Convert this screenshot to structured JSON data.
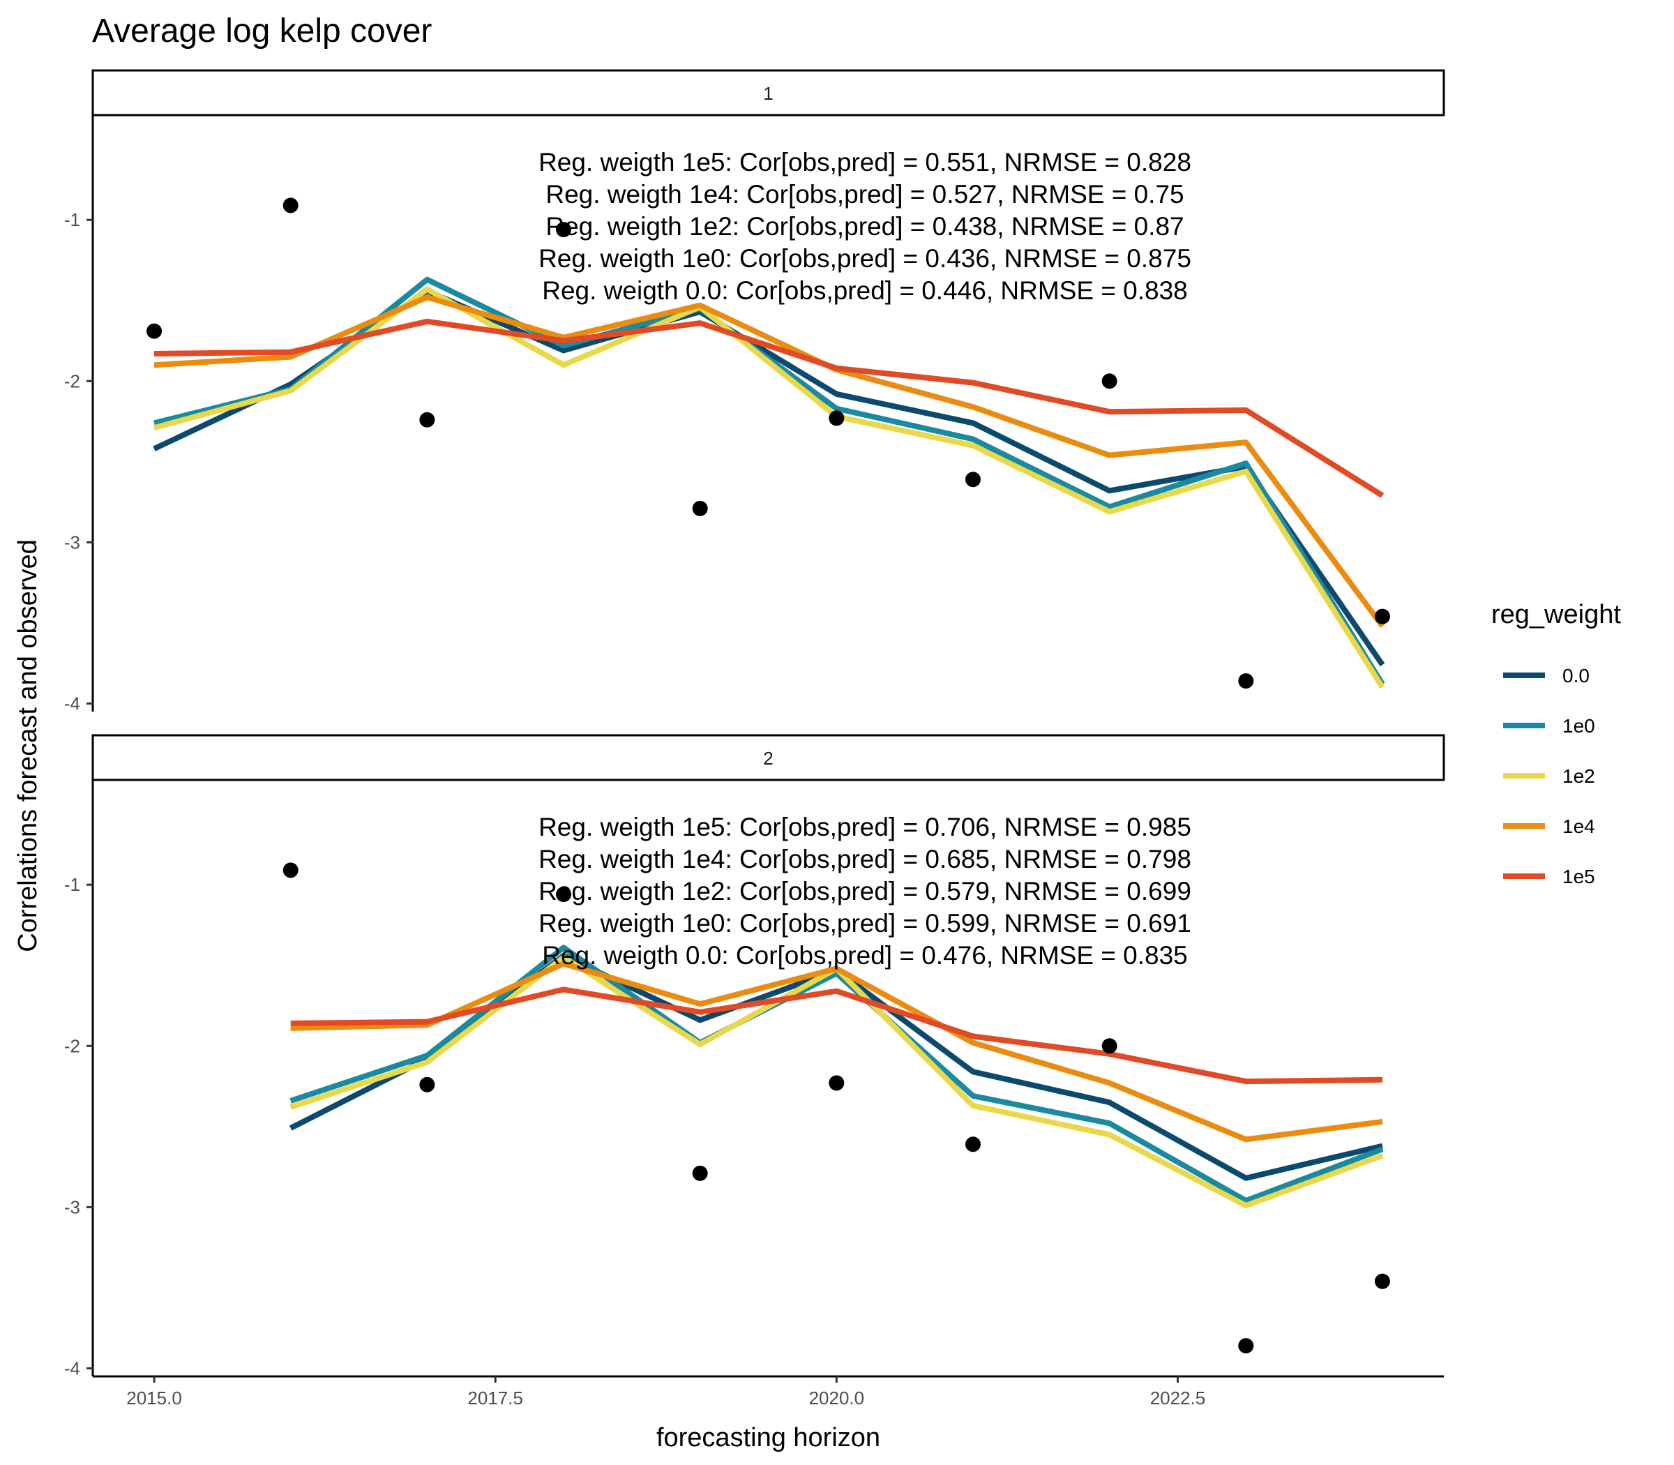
{
  "title": "Average log kelp cover",
  "xlabel": "forecasting horizon",
  "ylabel": "Correlations forecast and observed",
  "legend": {
    "title": "reg_weight",
    "entries": [
      "0.0",
      "1e0",
      "1e2",
      "1e4",
      "1e5"
    ]
  },
  "colors": {
    "0.0": "#0b4a6e",
    "1e0": "#1a8aa1",
    "1e2": "#e9d84b",
    "1e4": "#e98c0f",
    "1e5": "#e04a25",
    "points": "#000000"
  },
  "chart_data": {
    "type": "line",
    "facets": [
      "1",
      "2"
    ],
    "xlim": [
      2014.55,
      2024.45
    ],
    "ylim": [
      -4.05,
      -0.35
    ],
    "x_ticks": [
      "2015.0",
      "2017.5",
      "2020.0",
      "2022.5"
    ],
    "x_tick_values": [
      2015,
      2017.5,
      2020,
      2022.5
    ],
    "y_ticks": [
      "-1",
      "-2",
      "-3",
      "-4"
    ],
    "y_tick_values": [
      -1,
      -2,
      -3,
      -4
    ],
    "grid": false,
    "legend_position": "right",
    "panels": [
      {
        "facet": "1",
        "observed": {
          "x": [
            2015,
            2016,
            2017,
            2018,
            2019,
            2020,
            2021,
            2022,
            2023,
            2024
          ],
          "y": [
            -1.69,
            -0.91,
            -2.24,
            -1.06,
            -2.79,
            -2.23,
            -2.61,
            -2.0,
            -3.86,
            -3.46
          ]
        },
        "series": [
          {
            "name": "0.0",
            "x": [
              2015,
              2016,
              2017,
              2018,
              2019,
              2020,
              2021,
              2022,
              2023,
              2024
            ],
            "y": [
              -2.42,
              -2.02,
              -1.44,
              -1.81,
              -1.57,
              -2.08,
              -2.26,
              -2.68,
              -2.53,
              -3.76
            ]
          },
          {
            "name": "1e0",
            "x": [
              2015,
              2016,
              2017,
              2018,
              2019,
              2020,
              2021,
              2022,
              2023,
              2024
            ],
            "y": [
              -2.26,
              -2.05,
              -1.37,
              -1.78,
              -1.55,
              -2.17,
              -2.36,
              -2.78,
              -2.51,
              -3.88
            ]
          },
          {
            "name": "1e2",
            "x": [
              2015,
              2016,
              2017,
              2018,
              2019,
              2020,
              2021,
              2022,
              2023,
              2024
            ],
            "y": [
              -2.29,
              -2.06,
              -1.43,
              -1.9,
              -1.54,
              -2.22,
              -2.4,
              -2.81,
              -2.56,
              -3.9
            ]
          },
          {
            "name": "1e4",
            "x": [
              2015,
              2016,
              2017,
              2018,
              2019,
              2020,
              2021,
              2022,
              2023,
              2024
            ],
            "y": [
              -1.9,
              -1.85,
              -1.48,
              -1.73,
              -1.53,
              -1.93,
              -2.16,
              -2.46,
              -2.38,
              -3.52
            ]
          },
          {
            "name": "1e5",
            "x": [
              2015,
              2016,
              2017,
              2018,
              2019,
              2020,
              2021,
              2022,
              2023,
              2024
            ],
            "y": [
              -1.83,
              -1.82,
              -1.63,
              -1.75,
              -1.64,
              -1.92,
              -2.01,
              -2.19,
              -2.18,
              -2.71
            ]
          }
        ],
        "annotations": [
          "Reg. weigth 1e5: Cor[obs,pred] = 0.551, NRMSE =  0.828",
          "Reg. weigth 1e4: Cor[obs,pred] = 0.527, NRMSE =  0.75",
          "Reg. weigth 1e2: Cor[obs,pred] = 0.438, NRMSE =  0.87",
          "Reg. weigth 1e0: Cor[obs,pred] = 0.436, NRMSE =  0.875",
          "Reg. weigth 0.0: Cor[obs,pred] = 0.446, NRMSE =  0.838"
        ]
      },
      {
        "facet": "2",
        "observed": {
          "x": [
            2016,
            2017,
            2018,
            2019,
            2020,
            2021,
            2022,
            2023,
            2024
          ],
          "y": [
            -0.91,
            -2.24,
            -1.06,
            -2.79,
            -2.23,
            -2.61,
            -2.0,
            -3.86,
            -3.46
          ]
        },
        "series": [
          {
            "name": "0.0",
            "x": [
              2016,
              2017,
              2018,
              2019,
              2020,
              2021,
              2022,
              2023,
              2024
            ],
            "y": [
              -2.51,
              -2.08,
              -1.44,
              -1.84,
              -1.53,
              -2.16,
              -2.35,
              -2.82,
              -2.62
            ]
          },
          {
            "name": "1e0",
            "x": [
              2016,
              2017,
              2018,
              2019,
              2020,
              2021,
              2022,
              2023,
              2024
            ],
            "y": [
              -2.34,
              -2.06,
              -1.39,
              -1.98,
              -1.55,
              -2.31,
              -2.48,
              -2.96,
              -2.64
            ]
          },
          {
            "name": "1e2",
            "x": [
              2016,
              2017,
              2018,
              2019,
              2020,
              2021,
              2022,
              2023,
              2024
            ],
            "y": [
              -2.38,
              -2.1,
              -1.45,
              -1.99,
              -1.52,
              -2.37,
              -2.55,
              -2.99,
              -2.68
            ]
          },
          {
            "name": "1e4",
            "x": [
              2016,
              2017,
              2018,
              2019,
              2020,
              2021,
              2022,
              2023,
              2024
            ],
            "y": [
              -1.89,
              -1.87,
              -1.49,
              -1.74,
              -1.52,
              -1.98,
              -2.23,
              -2.58,
              -2.47
            ]
          },
          {
            "name": "1e5",
            "x": [
              2016,
              2017,
              2018,
              2019,
              2020,
              2021,
              2022,
              2023,
              2024
            ],
            "y": [
              -1.86,
              -1.85,
              -1.65,
              -1.79,
              -1.66,
              -1.94,
              -2.05,
              -2.22,
              -2.21
            ]
          }
        ],
        "annotations": [
          "Reg. weigth 1e5: Cor[obs,pred] = 0.706, NRMSE =  0.985",
          "Reg. weigth 1e4: Cor[obs,pred] = 0.685, NRMSE =  0.798",
          "Reg. weigth 1e2: Cor[obs,pred] = 0.579, NRMSE =  0.699",
          "Reg. weigth 1e0: Cor[obs,pred] = 0.599, NRMSE =  0.691",
          "Reg. weigth 0.0: Cor[obs,pred] = 0.476, NRMSE =  0.835"
        ]
      }
    ]
  }
}
